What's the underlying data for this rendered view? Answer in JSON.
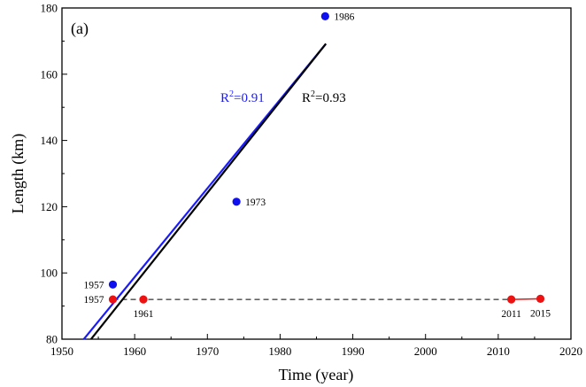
{
  "chart_data": {
    "type": "scatter",
    "panel_label": "(a)",
    "xlabel": "Time (year)",
    "ylabel": "Length (km)",
    "xlim": [
      1950,
      2020
    ],
    "ylim": [
      80,
      180
    ],
    "xticks": [
      1950,
      1960,
      1970,
      1980,
      1990,
      2000,
      2010,
      2020
    ],
    "yticks": [
      80,
      100,
      120,
      140,
      160,
      180
    ],
    "series": [
      {
        "color": "#1010ee",
        "points": [
          {
            "x": 1957,
            "y": 96.5,
            "label": "1957"
          },
          {
            "x": 1974,
            "y": 121.5,
            "label": "1973"
          },
          {
            "x": 1986.2,
            "y": 177.5,
            "label": "1986"
          }
        ]
      },
      {
        "color": "#ee1111",
        "points": [
          {
            "x": 1957,
            "y": 92,
            "label": "1957"
          },
          {
            "x": 1961.2,
            "y": 92,
            "label": "1961"
          },
          {
            "x": 2011.8,
            "y": 92,
            "label": "2011"
          },
          {
            "x": 2015.8,
            "y": 92.2,
            "label": "2015"
          }
        ]
      }
    ],
    "fit_lines": [
      {
        "color": "#1a1aff",
        "x": [
          1953,
          1986.3
        ],
        "y": [
          80,
          169.2
        ],
        "annotation": "R²=0.91"
      },
      {
        "color": "#000000",
        "x": [
          1954,
          1986.3
        ],
        "y": [
          80,
          169.2
        ],
        "annotation": "R²=0.93"
      }
    ],
    "reference_line": {
      "color": "#000000",
      "style": "dashed",
      "x": [
        1957,
        2011.8
      ],
      "y": [
        92,
        92
      ]
    },
    "red_segment": {
      "color": "#ee1111",
      "x": [
        2011.8,
        2015.8
      ],
      "y": [
        92,
        92.2
      ]
    }
  }
}
